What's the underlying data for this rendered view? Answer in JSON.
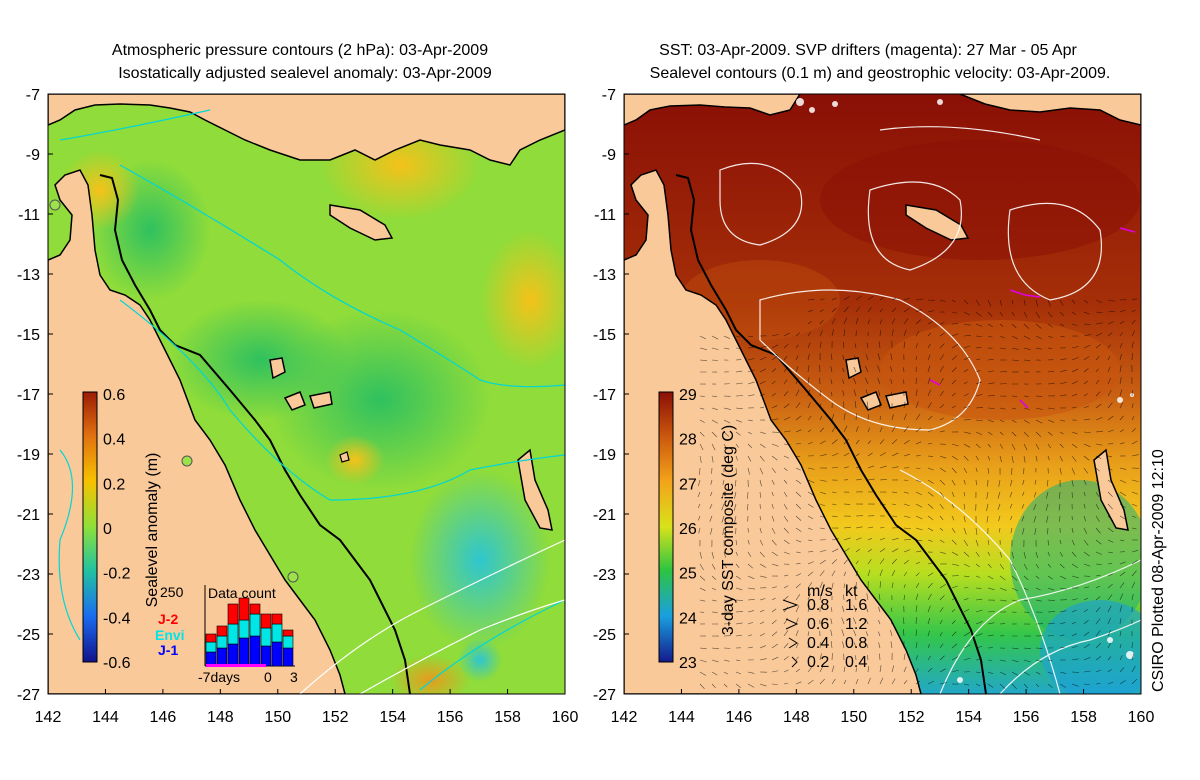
{
  "left_panel": {
    "title_line1": "Atmospheric pressure contours (2 hPa): 03-Apr-2009",
    "title_line2": "Isostatically adjusted sealevel anomaly: 03-Apr-2009",
    "colorbar_label": "Sealevel anomaly (m)",
    "colorbar_ticks": [
      "0.6",
      "0.4",
      "0.2",
      "0",
      "-0.2",
      "-0.4",
      "-0.6"
    ],
    "colorbar_colors": [
      "#9b1b05",
      "#e07010",
      "#f7c200",
      "#8ee03a",
      "#22c3a0",
      "#1a6cf0",
      "#12128a"
    ],
    "data_count": {
      "title": "Data count",
      "ymax_label": "250",
      "xlabels": [
        "-7days",
        "0",
        "3"
      ],
      "legend": [
        {
          "label": "J-2",
          "color": "#ff0000"
        },
        {
          "label": "Envi",
          "color": "#00e5e5"
        },
        {
          "label": "J-1",
          "color": "#0000ff"
        }
      ]
    }
  },
  "right_panel": {
    "title_line1": "SST: 03-Apr-2009. SVP drifters (magenta): 27 Mar - 05 Apr",
    "title_line2": "Sealevel contours (0.1 m) and geostrophic velocity: 03-Apr-2009.",
    "colorbar_label": "3-day SST composite (deg C)",
    "colorbar_ticks": [
      "29",
      "28",
      "27",
      "26",
      "25",
      "24",
      "23"
    ],
    "colorbar_colors": [
      "#8a0f06",
      "#c9560e",
      "#f3a31a",
      "#d8e21b",
      "#2dc441",
      "#1a9fe0",
      "#141a8c"
    ],
    "velocity_legend": {
      "header_ms": "m/s",
      "header_kt": "kt",
      "rows": [
        {
          "ms": "0.8",
          "kt": "1.6"
        },
        {
          "ms": "0.6",
          "kt": "1.2"
        },
        {
          "ms": "0.4",
          "kt": "0.8"
        },
        {
          "ms": "0.2",
          "kt": "0.4"
        }
      ]
    },
    "footer": "CSIRO Plotted 08-Apr-2009 12:10"
  },
  "axes": {
    "lat_ticks": [
      "-7",
      "-9",
      "-11",
      "-13",
      "-15",
      "-17",
      "-19",
      "-21",
      "-23",
      "-25",
      "-27"
    ],
    "lon_ticks": [
      "142",
      "144",
      "146",
      "148",
      "150",
      "152",
      "154",
      "156",
      "158",
      "160"
    ]
  },
  "colors": {
    "land": "#f9c99a",
    "coast": "#000000",
    "pressure_contour": "#00d6d6",
    "sealevel_contour": "#ffffff",
    "drifter": "#e000e0"
  }
}
